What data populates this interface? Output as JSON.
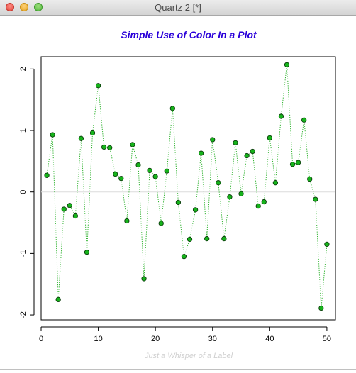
{
  "window": {
    "title": "Quartz 2 [*]",
    "controls": [
      "close-icon",
      "minimize-icon",
      "zoom-icon"
    ]
  },
  "colors": {
    "title": "#2a00d9",
    "point_fill": "#16b31b",
    "point_stroke": "#0b3d0b",
    "line": "#2db22d",
    "zero_line": "#dcdcdc",
    "sub_label": "#d0d0d0"
  },
  "chart_data": {
    "type": "line",
    "title": "Simple Use of Color In a Plot",
    "xlabel": "Just a Whisper of a Label",
    "ylabel": "",
    "xlim": [
      0,
      51.5
    ],
    "ylim": [
      -2.08,
      2.2
    ],
    "x_ticks": [
      0,
      10,
      20,
      30,
      40,
      50
    ],
    "y_ticks": [
      -2,
      -1,
      0,
      1,
      2
    ],
    "grid": false,
    "reference_line_y": 0,
    "series": [
      {
        "x": [
          1,
          2,
          3,
          4,
          5,
          6,
          7,
          8,
          9,
          10,
          11,
          12,
          13,
          14,
          15,
          16,
          17,
          18,
          19,
          20,
          21,
          22,
          23,
          24,
          25,
          26,
          27,
          28,
          29,
          30,
          31,
          32,
          33,
          34,
          35,
          36,
          37,
          38,
          39,
          40,
          41,
          42,
          43,
          44,
          45,
          46,
          47,
          48,
          49,
          50
        ],
        "values": [
          0.27,
          0.93,
          -1.75,
          -0.28,
          -0.22,
          -0.39,
          0.87,
          -0.98,
          0.96,
          1.73,
          0.73,
          0.72,
          0.29,
          0.22,
          -0.47,
          0.77,
          0.44,
          -1.41,
          0.35,
          0.25,
          -0.51,
          0.34,
          1.36,
          -0.17,
          -1.05,
          -0.77,
          -0.29,
          0.63,
          -0.76,
          0.85,
          0.15,
          -0.76,
          -0.08,
          0.8,
          -0.03,
          0.59,
          0.66,
          -0.23,
          -0.16,
          0.88,
          0.15,
          1.23,
          2.07,
          0.45,
          0.48,
          1.17,
          0.21,
          -0.12,
          -1.89,
          -0.85
        ]
      }
    ]
  }
}
